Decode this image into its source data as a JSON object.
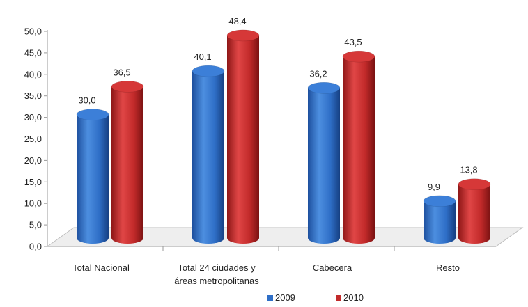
{
  "chart_data": {
    "type": "bar",
    "categories": [
      [
        "Total Nacional"
      ],
      [
        "Total 24 ciudades y",
        "áreas metropolitanas"
      ],
      [
        "Cabecera"
      ],
      [
        "Resto"
      ]
    ],
    "series": [
      {
        "name": "2009",
        "values": [
          30.0,
          40.1,
          36.2,
          9.9
        ],
        "labels": [
          "30,0",
          "40,1",
          "36,2",
          "9,9"
        ],
        "color": "#2f6fc7"
      },
      {
        "name": "2010",
        "values": [
          36.5,
          48.4,
          43.5,
          13.8
        ],
        "labels": [
          "36,5",
          "48,4",
          "43,5",
          "13,8"
        ],
        "color": "#c22a2a"
      }
    ],
    "ylim": [
      0,
      50
    ],
    "yticks": [
      "0,0",
      "5,0",
      "10,0",
      "15,0",
      "20,0",
      "25,0",
      "30,0",
      "35,0",
      "40,0",
      "45,0",
      "50,0"
    ],
    "grid": false,
    "legend_position": "bottom-center",
    "style": "3d-cylinder"
  }
}
